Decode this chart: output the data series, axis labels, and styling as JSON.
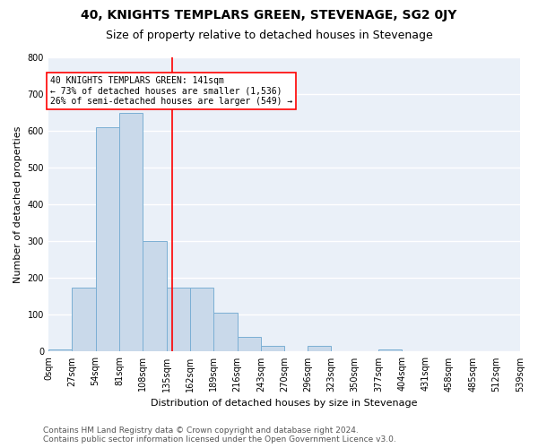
{
  "title": "40, KNIGHTS TEMPLARS GREEN, STEVENAGE, SG2 0JY",
  "subtitle": "Size of property relative to detached houses in Stevenage",
  "xlabel": "Distribution of detached houses by size in Stevenage",
  "ylabel": "Number of detached properties",
  "bin_edges": [
    0,
    27,
    54,
    81,
    108,
    135,
    162,
    189,
    216,
    243,
    270,
    296,
    323,
    350,
    377,
    404,
    431,
    458,
    485,
    512,
    539
  ],
  "bar_heights": [
    5,
    175,
    610,
    650,
    300,
    175,
    175,
    105,
    40,
    15,
    0,
    15,
    0,
    0,
    5,
    0,
    0,
    0,
    0,
    0
  ],
  "bar_color": "#c9d9ea",
  "bar_edgecolor": "#7bafd4",
  "red_line_x": 141,
  "ylim": [
    0,
    800
  ],
  "yticks": [
    0,
    100,
    200,
    300,
    400,
    500,
    600,
    700,
    800
  ],
  "annotation_text": "40 KNIGHTS TEMPLARS GREEN: 141sqm\n← 73% of detached houses are smaller (1,536)\n26% of semi-detached houses are larger (549) →",
  "annotation_box_color": "white",
  "annotation_box_edgecolor": "red",
  "footer_text": "Contains HM Land Registry data © Crown copyright and database right 2024.\nContains public sector information licensed under the Open Government Licence v3.0.",
  "background_color": "#eaf0f8",
  "grid_color": "white",
  "title_fontsize": 10,
  "subtitle_fontsize": 9,
  "axis_label_fontsize": 8,
  "tick_fontsize": 7,
  "footer_fontsize": 6.5,
  "annotation_fontsize": 7
}
